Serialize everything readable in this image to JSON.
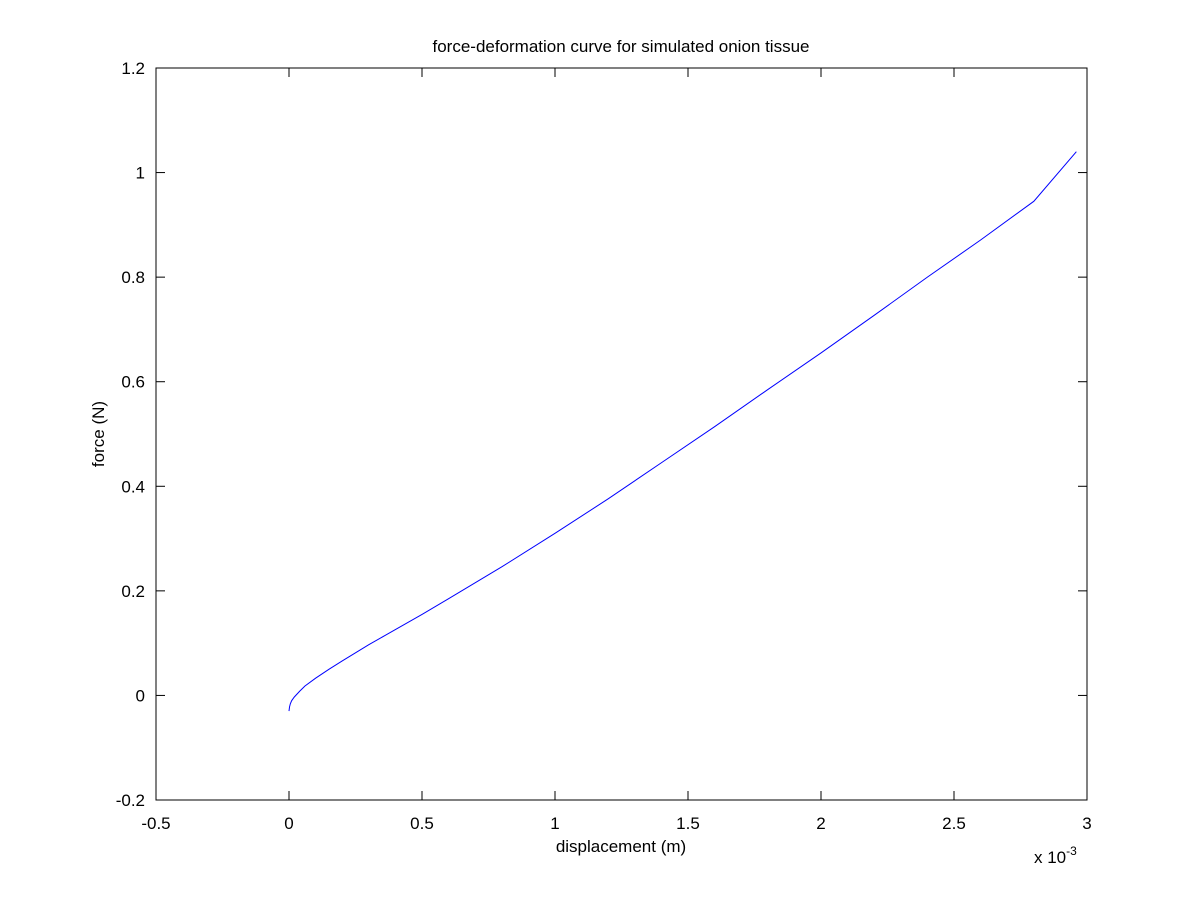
{
  "chart_data": {
    "type": "line",
    "title": "force-deformation curve for simulated onion tissue",
    "xlabel": "displacement (m)",
    "ylabel": "force (N)",
    "x_exponent_label": {
      "base": "x 10",
      "exponent": "-3"
    },
    "x_scale_factor": 0.001,
    "xlim": [
      -0.5,
      3
    ],
    "ylim": [
      -0.2,
      1.2
    ],
    "xticks": [
      {
        "value": -0.5,
        "label": "-0.5"
      },
      {
        "value": 0,
        "label": "0"
      },
      {
        "value": 0.5,
        "label": "0.5"
      },
      {
        "value": 1,
        "label": "1"
      },
      {
        "value": 1.5,
        "label": "1.5"
      },
      {
        "value": 2,
        "label": "2"
      },
      {
        "value": 2.5,
        "label": "2.5"
      },
      {
        "value": 3,
        "label": "3"
      }
    ],
    "yticks": [
      {
        "value": -0.2,
        "label": "-0.2"
      },
      {
        "value": 0,
        "label": "0"
      },
      {
        "value": 0.2,
        "label": "0.2"
      },
      {
        "value": 0.4,
        "label": "0.4"
      },
      {
        "value": 0.6,
        "label": "0.6"
      },
      {
        "value": 0.8,
        "label": "0.8"
      },
      {
        "value": 1,
        "label": "1"
      },
      {
        "value": 1.2,
        "label": "1.2"
      }
    ],
    "grid": false,
    "legend": "none",
    "series": [
      {
        "color": "#0000ff",
        "x": [
          0,
          0.002,
          0.005,
          0.01,
          0.02,
          0.04,
          0.06,
          0.1,
          0.15,
          0.2,
          0.3,
          0.4,
          0.5,
          0.6,
          0.8,
          1.0,
          1.2,
          1.4,
          1.6,
          1.8,
          2.0,
          2.2,
          2.4,
          2.6,
          2.8,
          2.96
        ],
        "y": [
          -0.03,
          -0.022,
          -0.016,
          -0.01,
          -0.003,
          0.008,
          0.018,
          0.033,
          0.05,
          0.066,
          0.097,
          0.126,
          0.155,
          0.185,
          0.246,
          0.31,
          0.376,
          0.445,
          0.514,
          0.585,
          0.655,
          0.727,
          0.8,
          0.871,
          0.945,
          1.04
        ]
      }
    ]
  },
  "colors": {
    "axes": "#000000",
    "background": "#ffffff",
    "line": "#0000ff"
  }
}
